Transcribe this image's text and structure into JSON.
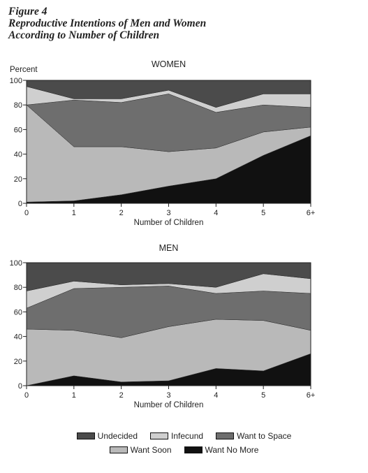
{
  "figure": {
    "title_lines": [
      "Figure 4",
      "Reproductive Intentions of Men and Women",
      "According to Number of Children"
    ]
  },
  "colors": {
    "undecided": "#4b4b4b",
    "infecund": "#cfcfcf",
    "want_to_space": "#6e6e6e",
    "want_soon": "#b9b9b9",
    "want_no_more": "#111111"
  },
  "chart_data": [
    {
      "type": "area",
      "stacked": true,
      "title": "WOMEN",
      "ylabel": "Percent",
      "xlabel": "Number of Children",
      "categories": [
        "0",
        "1",
        "2",
        "3",
        "4",
        "5",
        "6+"
      ],
      "ylim": [
        0,
        100
      ],
      "yticks": [
        "0",
        "20",
        "40",
        "60",
        "80",
        "100"
      ],
      "series": [
        {
          "name": "Want No More",
          "key": "want_no_more",
          "values": [
            1,
            2,
            7,
            14,
            20,
            39,
            55
          ]
        },
        {
          "name": "Want Soon",
          "key": "want_soon",
          "values": [
            79,
            44,
            39,
            28,
            25,
            19,
            7
          ]
        },
        {
          "name": "Want to Space",
          "key": "want_to_space",
          "values": [
            0,
            38,
            36,
            47,
            29,
            22,
            16
          ]
        },
        {
          "name": "Infecund",
          "key": "infecund",
          "values": [
            15,
            1,
            3,
            3,
            4,
            9,
            11
          ]
        },
        {
          "name": "Undecided",
          "key": "undecided",
          "values": [
            5,
            15,
            15,
            8,
            22,
            11,
            11
          ]
        }
      ]
    },
    {
      "type": "area",
      "stacked": true,
      "title": "MEN",
      "ylabel": "",
      "xlabel": "Number of Children",
      "categories": [
        "0",
        "1",
        "2",
        "3",
        "4",
        "5",
        "6+"
      ],
      "ylim": [
        0,
        100
      ],
      "yticks": [
        "0",
        "20",
        "40",
        "60",
        "80",
        "100"
      ],
      "series": [
        {
          "name": "Want No More",
          "key": "want_no_more",
          "values": [
            0,
            8,
            3,
            4,
            14,
            12,
            26
          ]
        },
        {
          "name": "Want Soon",
          "key": "want_soon",
          "values": [
            46,
            37,
            36,
            44,
            40,
            41,
            19
          ]
        },
        {
          "name": "Want to Space",
          "key": "want_to_space",
          "values": [
            17,
            34,
            41,
            33,
            21,
            24,
            30
          ]
        },
        {
          "name": "Infecund",
          "key": "infecund",
          "values": [
            14,
            6,
            2,
            2,
            5,
            14,
            12
          ]
        },
        {
          "name": "Undecided",
          "key": "undecided",
          "values": [
            23,
            15,
            18,
            17,
            20,
            9,
            13
          ]
        }
      ]
    }
  ],
  "legend": {
    "row1": [
      {
        "key": "undecided",
        "label": "Undecided"
      },
      {
        "key": "infecund",
        "label": "Infecund"
      },
      {
        "key": "want_to_space",
        "label": "Want to Space"
      }
    ],
    "row2": [
      {
        "key": "want_soon",
        "label": "Want Soon"
      },
      {
        "key": "want_no_more",
        "label": "Want No More"
      }
    ]
  }
}
